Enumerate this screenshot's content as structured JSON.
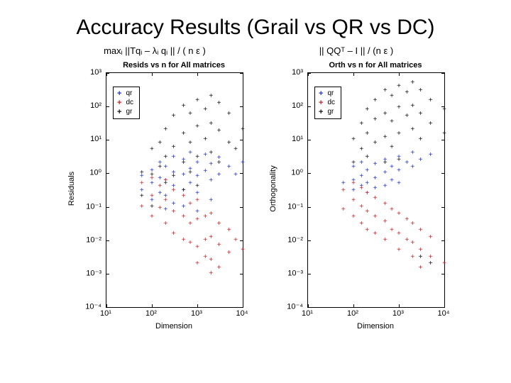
{
  "slide": {
    "title": "Accuracy Results (Grail vs QR vs DC)"
  },
  "chart_data": [
    {
      "type": "scatter",
      "title": "Resids vs n for All matrices",
      "subtitle_formula": "maxᵢ ||Tqᵢ – λᵢ qᵢ || / ( n ε )",
      "xlabel": "Dimension",
      "ylabel": "Residuals",
      "x_scale": "log",
      "y_scale": "log",
      "xlim": [
        10,
        10000
      ],
      "ylim": [
        0.0001,
        1000
      ],
      "xlim_log": [
        1,
        4
      ],
      "ylim_log": [
        -4,
        3
      ],
      "x_tick_labels": [
        "10¹",
        "10²",
        "10³",
        "10⁴"
      ],
      "y_tick_labels": [
        "10³",
        "10²",
        "10¹",
        "10⁰",
        "10⁻¹",
        "10⁻²",
        "10⁻³",
        "10⁻⁴"
      ],
      "grid": false,
      "legend_position": "top-left",
      "legend": [
        {
          "label": "qr",
          "color": "#2233cc"
        },
        {
          "label": "dc",
          "color": "#cc2222"
        },
        {
          "label": "gr",
          "color": "#111111"
        }
      ],
      "series": [
        {
          "name": "qr",
          "color": "#2233cc",
          "marker": "+",
          "points": [
            [
              60,
              0.8
            ],
            [
              60,
              0.3
            ],
            [
              100,
              1.2
            ],
            [
              100,
              0.5
            ],
            [
              100,
              0.15
            ],
            [
              150,
              2
            ],
            [
              150,
              0.7
            ],
            [
              150,
              0.25
            ],
            [
              200,
              1.5
            ],
            [
              200,
              0.6
            ],
            [
              200,
              0.2
            ],
            [
              200,
              0.08
            ],
            [
              300,
              3
            ],
            [
              300,
              1
            ],
            [
              300,
              0.4
            ],
            [
              300,
              0.12
            ],
            [
              500,
              2.5
            ],
            [
              500,
              0.9
            ],
            [
              500,
              0.3
            ],
            [
              500,
              0.1
            ],
            [
              700,
              4
            ],
            [
              700,
              1.3
            ],
            [
              700,
              0.5
            ],
            [
              1000,
              2
            ],
            [
              1000,
              0.8
            ],
            [
              1000,
              0.25
            ],
            [
              1000,
              0.07
            ],
            [
              1500,
              3.5
            ],
            [
              1500,
              1.1
            ],
            [
              2000,
              1.8
            ],
            [
              2000,
              0.6
            ],
            [
              2000,
              0.15
            ],
            [
              3000,
              2.8
            ],
            [
              3000,
              0.9
            ],
            [
              5000,
              1.5
            ],
            [
              7000,
              0.9
            ],
            [
              10000,
              2
            ]
          ]
        },
        {
          "name": "dc",
          "color": "#cc2222",
          "marker": "+",
          "points": [
            [
              60,
              0.5
            ],
            [
              60,
              0.1
            ],
            [
              100,
              0.7
            ],
            [
              100,
              0.2
            ],
            [
              100,
              0.05
            ],
            [
              150,
              0.4
            ],
            [
              150,
              0.09
            ],
            [
              200,
              0.6
            ],
            [
              200,
              0.15
            ],
            [
              200,
              0.03
            ],
            [
              300,
              0.3
            ],
            [
              300,
              0.07
            ],
            [
              300,
              0.015
            ],
            [
              500,
              0.2
            ],
            [
              500,
              0.05
            ],
            [
              500,
              0.01
            ],
            [
              700,
              0.12
            ],
            [
              700,
              0.03
            ],
            [
              700,
              0.008
            ],
            [
              1000,
              0.15
            ],
            [
              1000,
              0.04
            ],
            [
              1000,
              0.006
            ],
            [
              1000,
              0.002
            ],
            [
              1500,
              0.05
            ],
            [
              1500,
              0.01
            ],
            [
              1500,
              0.003
            ],
            [
              2000,
              0.06
            ],
            [
              2000,
              0.012
            ],
            [
              2000,
              0.0025
            ],
            [
              2000,
              0.001
            ],
            [
              3000,
              0.03
            ],
            [
              3000,
              0.007
            ],
            [
              3000,
              0.0015
            ],
            [
              5000,
              0.02
            ],
            [
              5000,
              0.004
            ],
            [
              7000,
              0.01
            ],
            [
              10000,
              0.005
            ]
          ]
        },
        {
          "name": "gr",
          "color": "#111111",
          "marker": "+",
          "points": [
            [
              60,
              1
            ],
            [
              60,
              0.2
            ],
            [
              100,
              5
            ],
            [
              100,
              0.9
            ],
            [
              100,
              0.1
            ],
            [
              150,
              8
            ],
            [
              150,
              1.5
            ],
            [
              200,
              20
            ],
            [
              200,
              3
            ],
            [
              200,
              0.5
            ],
            [
              300,
              50
            ],
            [
              300,
              6
            ],
            [
              300,
              0.8
            ],
            [
              500,
              100
            ],
            [
              500,
              15
            ],
            [
              500,
              2
            ],
            [
              500,
              0.3
            ],
            [
              700,
              60
            ],
            [
              700,
              8
            ],
            [
              700,
              1
            ],
            [
              1000,
              150
            ],
            [
              1000,
              25
            ],
            [
              1000,
              3
            ],
            [
              1000,
              0.4
            ],
            [
              1500,
              80
            ],
            [
              1500,
              10
            ],
            [
              2000,
              200
            ],
            [
              2000,
              30
            ],
            [
              2000,
              4
            ],
            [
              3000,
              120
            ],
            [
              3000,
              18
            ],
            [
              3000,
              2
            ],
            [
              5000,
              60
            ],
            [
              5000,
              8
            ],
            [
              7000,
              5
            ],
            [
              10000,
              20
            ]
          ]
        }
      ]
    },
    {
      "type": "scatter",
      "title": "Orth vs n for All matrices",
      "subtitle_formula": "|| QQᵀ – I || / (n ε )",
      "xlabel": "Dimension",
      "ylabel": "Orthogonality",
      "x_scale": "log",
      "y_scale": "log",
      "xlim": [
        10,
        10000
      ],
      "ylim": [
        0.0001,
        1000
      ],
      "xlim_log": [
        1,
        4
      ],
      "ylim_log": [
        -4,
        3
      ],
      "x_tick_labels": [
        "10¹",
        "10²",
        "10³",
        "10⁴"
      ],
      "y_tick_labels": [
        "10³",
        "10²",
        "10¹",
        "10⁰",
        "10⁻¹",
        "10⁻²",
        "10⁻³",
        "10⁻⁴"
      ],
      "grid": false,
      "legend_position": "top-left",
      "legend": [
        {
          "label": "qr",
          "color": "#2233cc"
        },
        {
          "label": "dc",
          "color": "#cc2222"
        },
        {
          "label": "gr",
          "color": "#111111"
        }
      ],
      "series": [
        {
          "name": "qr",
          "color": "#2233cc",
          "marker": "+",
          "points": [
            [
              60,
              0.5
            ],
            [
              100,
              1.5
            ],
            [
              100,
              0.6
            ],
            [
              100,
              0.3
            ],
            [
              150,
              2
            ],
            [
              150,
              0.8
            ],
            [
              150,
              0.4
            ],
            [
              200,
              1.2
            ],
            [
              200,
              0.5
            ],
            [
              200,
              0.25
            ],
            [
              300,
              1.8
            ],
            [
              300,
              0.7
            ],
            [
              300,
              0.35
            ],
            [
              500,
              2.5
            ],
            [
              500,
              1
            ],
            [
              500,
              0.4
            ],
            [
              700,
              1.5
            ],
            [
              700,
              0.6
            ],
            [
              1000,
              3
            ],
            [
              1000,
              1.2
            ],
            [
              1000,
              0.5
            ],
            [
              1500,
              2
            ],
            [
              2000,
              4
            ],
            [
              2000,
              1.5
            ],
            [
              3000,
              2.5
            ],
            [
              5000,
              3.5
            ]
          ]
        },
        {
          "name": "dc",
          "color": "#cc2222",
          "marker": "+",
          "points": [
            [
              60,
              0.3
            ],
            [
              60,
              0.08
            ],
            [
              100,
              0.5
            ],
            [
              100,
              0.15
            ],
            [
              100,
              0.05
            ],
            [
              150,
              0.35
            ],
            [
              150,
              0.1
            ],
            [
              150,
              0.03
            ],
            [
              200,
              0.25
            ],
            [
              200,
              0.07
            ],
            [
              200,
              0.02
            ],
            [
              300,
              0.18
            ],
            [
              300,
              0.05
            ],
            [
              300,
              0.015
            ],
            [
              500,
              0.12
            ],
            [
              500,
              0.035
            ],
            [
              500,
              0.01
            ],
            [
              700,
              0.08
            ],
            [
              700,
              0.02
            ],
            [
              1000,
              0.06
            ],
            [
              1000,
              0.015
            ],
            [
              1000,
              0.005
            ],
            [
              1500,
              0.04
            ],
            [
              1500,
              0.01
            ],
            [
              2000,
              0.03
            ],
            [
              2000,
              0.008
            ],
            [
              2000,
              0.003
            ],
            [
              3000,
              0.02
            ],
            [
              3000,
              0.005
            ],
            [
              3000,
              0.0015
            ],
            [
              5000,
              0.012
            ],
            [
              5000,
              0.003
            ],
            [
              10000,
              0.002
            ]
          ]
        },
        {
          "name": "gr",
          "color": "#111111",
          "marker": "+",
          "points": [
            [
              100,
              10
            ],
            [
              100,
              2
            ],
            [
              150,
              30
            ],
            [
              150,
              5
            ],
            [
              200,
              80
            ],
            [
              200,
              15
            ],
            [
              200,
              3
            ],
            [
              300,
              150
            ],
            [
              300,
              40
            ],
            [
              300,
              8
            ],
            [
              500,
              300
            ],
            [
              500,
              60
            ],
            [
              500,
              12
            ],
            [
              500,
              2
            ],
            [
              700,
              200
            ],
            [
              700,
              35
            ],
            [
              700,
              6
            ],
            [
              1000,
              400
            ],
            [
              1000,
              90
            ],
            [
              1000,
              15
            ],
            [
              1000,
              2.5
            ],
            [
              1500,
              250
            ],
            [
              1500,
              50
            ],
            [
              2000,
              500
            ],
            [
              2000,
              100
            ],
            [
              2000,
              20
            ],
            [
              3000,
              300
            ],
            [
              3000,
              60
            ],
            [
              3000,
              10
            ],
            [
              3000,
              0.003
            ],
            [
              5000,
              150
            ],
            [
              5000,
              30
            ],
            [
              5000,
              0.002
            ],
            [
              10000,
              80
            ],
            [
              10000,
              15
            ]
          ]
        }
      ]
    }
  ]
}
